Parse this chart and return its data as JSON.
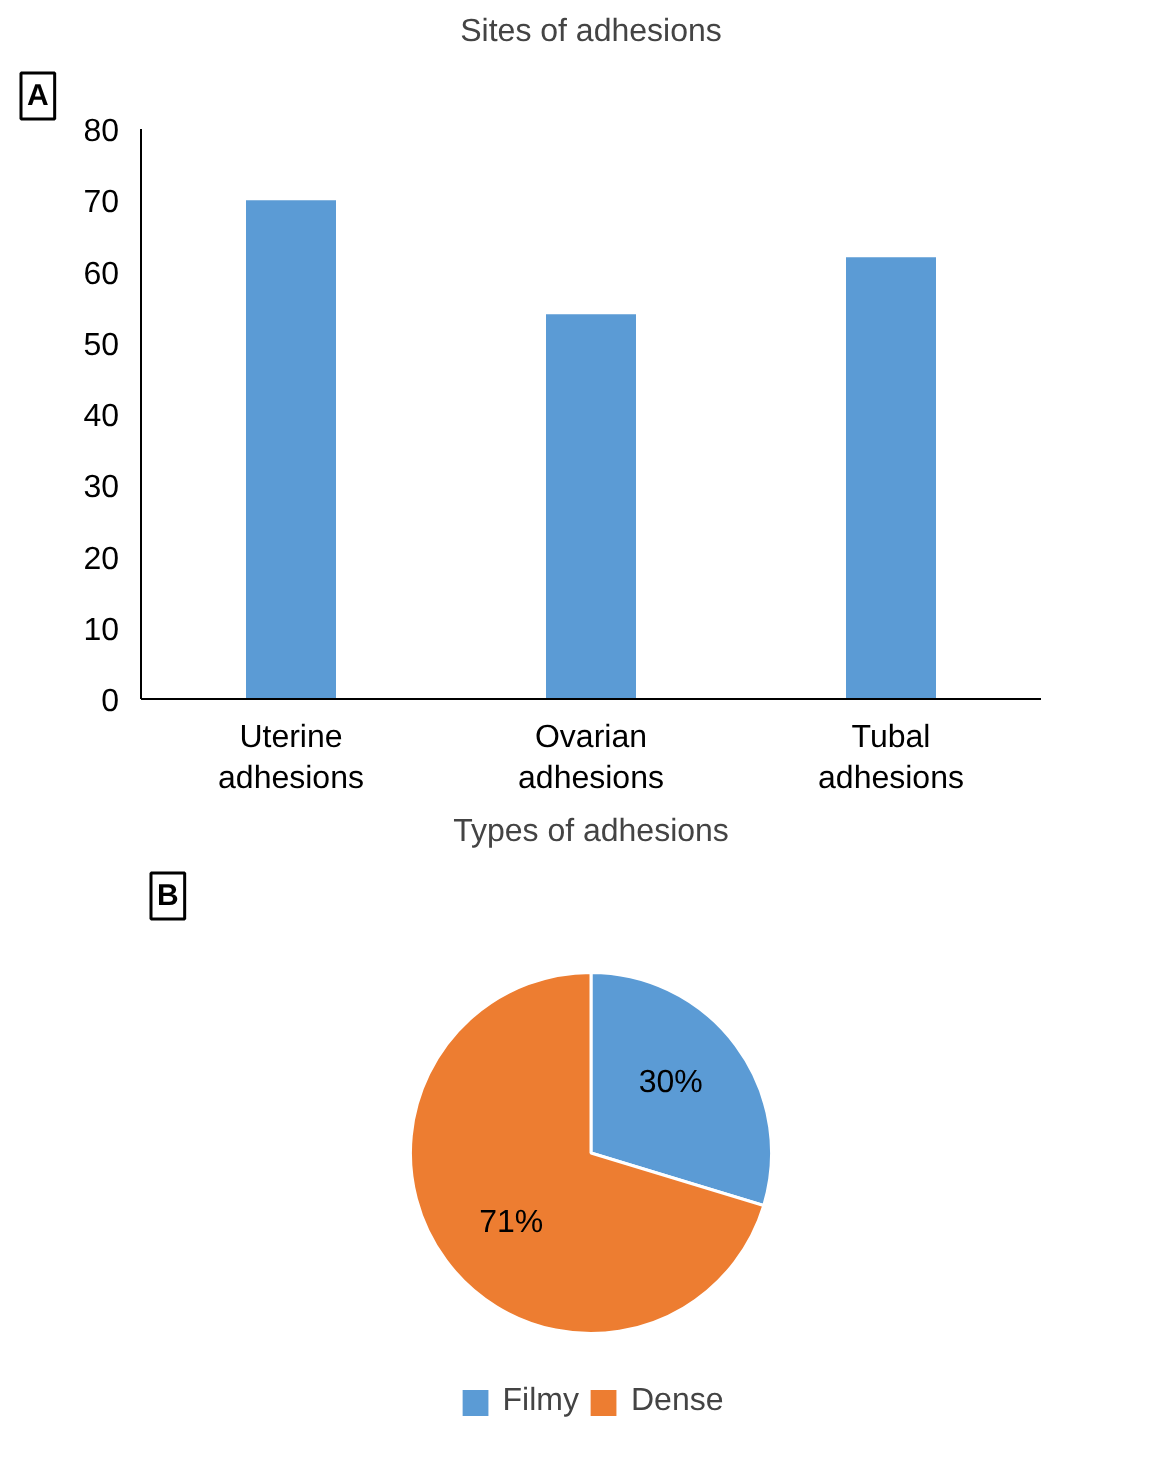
{
  "chart_data": [
    {
      "type": "bar",
      "title": "Sites of adhesions",
      "annotations": [
        "A"
      ],
      "categories": [
        "Uterine\nadhesions",
        "Ovarian\nadhesions",
        "Tubal\nadhesions"
      ],
      "values": [
        70,
        54,
        62
      ],
      "color": "#5b9bd5",
      "ylim": [
        0,
        80
      ],
      "yticks": [
        0,
        10,
        20,
        30,
        40,
        50,
        60,
        70,
        80
      ],
      "grid": false
    },
    {
      "type": "pie",
      "title": "Types of adhesions",
      "annotations": [
        "B"
      ],
      "categories": [
        "Filmy",
        "Dense"
      ],
      "values": [
        30,
        71
      ],
      "colors": [
        "#5b9bd5",
        "#ed7d31"
      ],
      "value_labels": [
        "30%",
        "71%"
      ],
      "legend": "bottom"
    }
  ]
}
